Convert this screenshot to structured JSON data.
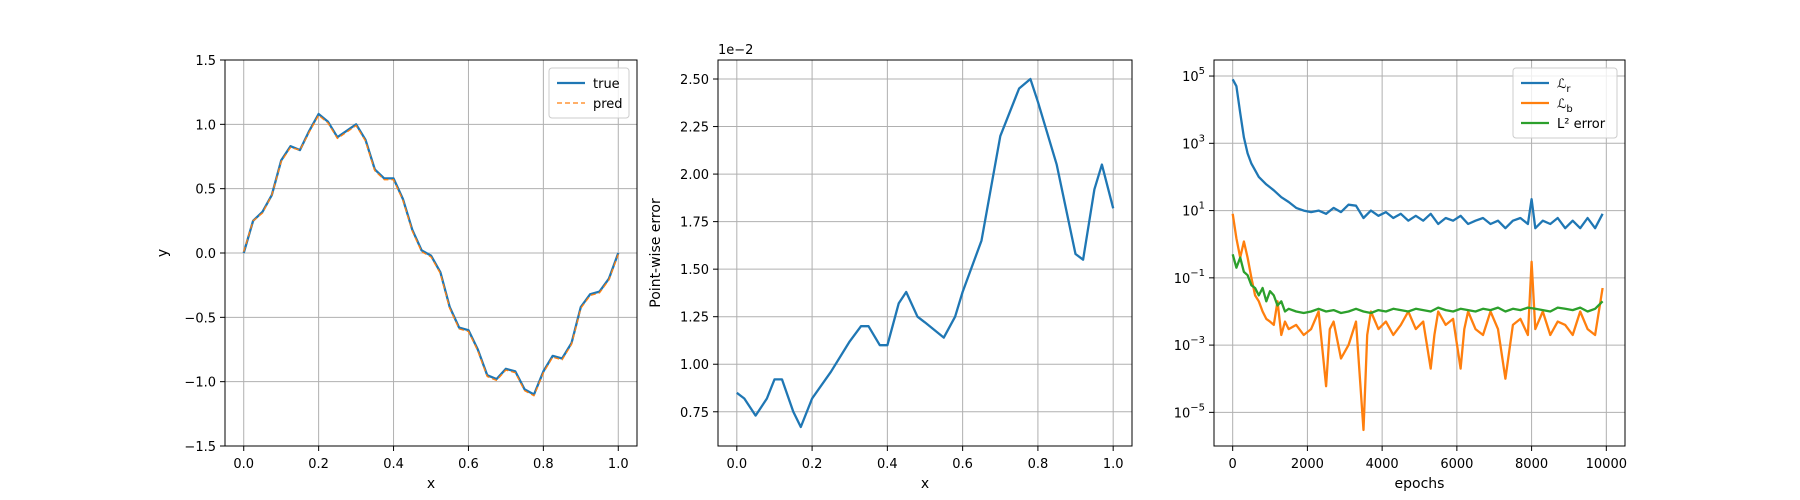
{
  "colors": {
    "blue": "#1f77b4",
    "orange": "#ff7f0e",
    "green": "#2ca02c",
    "grid": "#b0b0b0"
  },
  "chart_data": [
    {
      "type": "line",
      "xlabel": "x",
      "ylabel": "y",
      "xlim": [
        -0.05,
        1.05
      ],
      "ylim": [
        -1.5,
        1.5
      ],
      "xticks": [
        0.0,
        0.2,
        0.4,
        0.6,
        0.8,
        1.0
      ],
      "xtick_labels": [
        "0.0",
        "0.2",
        "0.4",
        "0.6",
        "0.8",
        "1.0"
      ],
      "yticks": [
        -1.5,
        -1.0,
        -0.5,
        0.0,
        0.5,
        1.0,
        1.5
      ],
      "ytick_labels": [
        "−1.5",
        "−1.0",
        "−0.5",
        "0.0",
        "0.5",
        "1.0",
        "1.5"
      ],
      "grid": true,
      "legend": "top-right",
      "series": [
        {
          "name": "true",
          "color": "#1f77b4",
          "style": "solid",
          "x": [
            0.0,
            0.025,
            0.05,
            0.075,
            0.1,
            0.125,
            0.15,
            0.175,
            0.2,
            0.225,
            0.25,
            0.275,
            0.3,
            0.325,
            0.35,
            0.375,
            0.4,
            0.425,
            0.45,
            0.475,
            0.5,
            0.525,
            0.55,
            0.575,
            0.6,
            0.625,
            0.65,
            0.675,
            0.7,
            0.725,
            0.75,
            0.775,
            0.8,
            0.825,
            0.85,
            0.875,
            0.9,
            0.925,
            0.95,
            0.975,
            1.0
          ],
          "y": [
            0.0,
            0.25,
            0.32,
            0.45,
            0.72,
            0.83,
            0.8,
            0.95,
            1.08,
            1.02,
            0.9,
            0.95,
            1.0,
            0.88,
            0.65,
            0.58,
            0.58,
            0.42,
            0.18,
            0.02,
            -0.02,
            -0.15,
            -0.42,
            -0.58,
            -0.6,
            -0.75,
            -0.95,
            -0.98,
            -0.9,
            -0.92,
            -1.06,
            -1.1,
            -0.92,
            -0.8,
            -0.82,
            -0.7,
            -0.42,
            -0.32,
            -0.3,
            -0.2,
            0.0
          ]
        },
        {
          "name": "pred",
          "color": "#ff7f0e",
          "style": "dashed",
          "x": [
            0.0,
            0.025,
            0.05,
            0.075,
            0.1,
            0.125,
            0.15,
            0.175,
            0.2,
            0.225,
            0.25,
            0.275,
            0.3,
            0.325,
            0.35,
            0.375,
            0.4,
            0.425,
            0.45,
            0.475,
            0.5,
            0.525,
            0.55,
            0.575,
            0.6,
            0.625,
            0.65,
            0.675,
            0.7,
            0.725,
            0.75,
            0.775,
            0.8,
            0.825,
            0.85,
            0.875,
            0.9,
            0.925,
            0.95,
            0.975,
            1.0
          ],
          "y": [
            0.01,
            0.25,
            0.31,
            0.45,
            0.71,
            0.82,
            0.8,
            0.94,
            1.07,
            1.01,
            0.89,
            0.94,
            0.99,
            0.87,
            0.64,
            0.57,
            0.57,
            0.41,
            0.17,
            0.01,
            -0.03,
            -0.16,
            -0.43,
            -0.59,
            -0.61,
            -0.76,
            -0.96,
            -0.99,
            -0.91,
            -0.93,
            -1.07,
            -1.11,
            -0.93,
            -0.81,
            -0.83,
            -0.71,
            -0.43,
            -0.33,
            -0.31,
            -0.21,
            -0.01
          ]
        }
      ]
    },
    {
      "type": "line",
      "xlabel": "x",
      "ylabel": "Point-wise error",
      "offset_text": "1e−2",
      "xlim": [
        -0.05,
        1.05
      ],
      "ylim": [
        0.57,
        2.6
      ],
      "xticks": [
        0.0,
        0.2,
        0.4,
        0.6,
        0.8,
        1.0
      ],
      "xtick_labels": [
        "0.0",
        "0.2",
        "0.4",
        "0.6",
        "0.8",
        "1.0"
      ],
      "yticks": [
        0.75,
        1.0,
        1.25,
        1.5,
        1.75,
        2.0,
        2.25,
        2.5
      ],
      "ytick_labels": [
        "0.75",
        "1.00",
        "1.25",
        "1.50",
        "1.75",
        "2.00",
        "2.25",
        "2.50"
      ],
      "grid": true,
      "series": [
        {
          "color": "#1f77b4",
          "x": [
            0.0,
            0.02,
            0.05,
            0.08,
            0.1,
            0.12,
            0.15,
            0.17,
            0.2,
            0.25,
            0.3,
            0.33,
            0.35,
            0.38,
            0.4,
            0.43,
            0.45,
            0.48,
            0.5,
            0.55,
            0.58,
            0.6,
            0.65,
            0.7,
            0.75,
            0.78,
            0.8,
            0.85,
            0.9,
            0.92,
            0.95,
            0.97,
            1.0
          ],
          "y": [
            0.85,
            0.82,
            0.73,
            0.82,
            0.92,
            0.92,
            0.75,
            0.67,
            0.82,
            0.96,
            1.12,
            1.2,
            1.2,
            1.1,
            1.1,
            1.32,
            1.38,
            1.25,
            1.22,
            1.14,
            1.25,
            1.38,
            1.65,
            2.2,
            2.45,
            2.5,
            2.38,
            2.05,
            1.58,
            1.55,
            1.92,
            2.05,
            1.82
          ]
        }
      ]
    },
    {
      "type": "line",
      "xlabel": "epochs",
      "ylabel": "",
      "yscale": "log",
      "xlim": [
        -500,
        10500
      ],
      "ylim": [
        1e-06,
        300000.0
      ],
      "xticks": [
        0,
        2000,
        4000,
        6000,
        8000,
        10000
      ],
      "xtick_labels": [
        "0",
        "2000",
        "4000",
        "6000",
        "8000",
        "10000"
      ],
      "yticks": [
        1e-05,
        0.001,
        0.1,
        10,
        1000,
        100000
      ],
      "ytick_labels": [
        [
          "10",
          "−5"
        ],
        [
          "10",
          "−3"
        ],
        [
          "10",
          "−1"
        ],
        [
          "10",
          "1"
        ],
        [
          "10",
          "3"
        ],
        [
          "10",
          "5"
        ]
      ],
      "grid": true,
      "legend": "top-right",
      "series": [
        {
          "name": "ℒ",
          "sub": "r",
          "color": "#1f77b4",
          "x": [
            0,
            100,
            200,
            300,
            400,
            500,
            700,
            900,
            1100,
            1300,
            1500,
            1700,
            1900,
            2100,
            2300,
            2500,
            2700,
            2900,
            3100,
            3300,
            3500,
            3700,
            3900,
            4100,
            4300,
            4500,
            4700,
            4900,
            5100,
            5300,
            5500,
            5700,
            5900,
            6100,
            6300,
            6500,
            6700,
            6900,
            7100,
            7300,
            7500,
            7700,
            7900,
            8000,
            8100,
            8300,
            8500,
            8700,
            8900,
            9100,
            9300,
            9500,
            9700,
            9900
          ],
          "y": [
            80000,
            50000,
            8000,
            1500,
            500,
            250,
            100,
            60,
            40,
            25,
            18,
            12,
            10,
            9,
            10,
            8,
            12,
            9,
            15,
            14,
            6,
            10,
            7,
            9,
            6,
            8,
            5,
            7,
            5,
            8,
            4,
            6,
            5,
            7,
            4,
            5,
            6,
            4,
            5,
            3,
            5,
            6,
            4,
            22,
            3,
            5,
            4,
            6,
            3,
            5,
            3,
            6,
            3,
            8
          ]
        },
        {
          "name": "ℒ",
          "sub": "b",
          "color": "#ff7f0e",
          "x": [
            0,
            100,
            200,
            300,
            400,
            500,
            600,
            700,
            800,
            900,
            1000,
            1100,
            1200,
            1300,
            1400,
            1500,
            1700,
            1900,
            2100,
            2300,
            2500,
            2600,
            2700,
            2900,
            3100,
            3300,
            3500,
            3600,
            3700,
            3900,
            4100,
            4300,
            4500,
            4700,
            4900,
            5100,
            5300,
            5400,
            5500,
            5700,
            5900,
            6100,
            6200,
            6300,
            6500,
            6700,
            6900,
            7100,
            7300,
            7500,
            7700,
            7900,
            8000,
            8100,
            8300,
            8500,
            8700,
            8900,
            9100,
            9300,
            9500,
            9700,
            9900
          ],
          "y": [
            8,
            1.5,
            0.4,
            1.2,
            0.4,
            0.1,
            0.03,
            0.02,
            0.01,
            0.006,
            0.005,
            0.004,
            0.02,
            0.002,
            0.005,
            0.003,
            0.004,
            0.002,
            0.003,
            0.01,
            6e-05,
            0.003,
            0.005,
            0.0004,
            0.001,
            0.005,
            3e-06,
            0.002,
            0.01,
            0.003,
            0.005,
            0.002,
            0.004,
            0.01,
            0.003,
            0.005,
            0.0002,
            0.002,
            0.01,
            0.004,
            0.006,
            0.0002,
            0.003,
            0.01,
            0.003,
            0.002,
            0.01,
            0.003,
            0.0001,
            0.004,
            0.006,
            0.002,
            0.3,
            0.003,
            0.01,
            0.002,
            0.005,
            0.004,
            0.002,
            0.01,
            0.003,
            0.002,
            0.05
          ]
        },
        {
          "name": "L² error",
          "color": "#2ca02c",
          "x": [
            0,
            100,
            200,
            300,
            400,
            500,
            600,
            700,
            800,
            900,
            1000,
            1100,
            1200,
            1300,
            1400,
            1500,
            1700,
            1900,
            2100,
            2300,
            2500,
            2700,
            2900,
            3100,
            3300,
            3500,
            3700,
            3900,
            4100,
            4300,
            4500,
            4700,
            4900,
            5100,
            5300,
            5500,
            5700,
            5900,
            6100,
            6300,
            6500,
            6700,
            6900,
            7100,
            7300,
            7500,
            7700,
            7900,
            8100,
            8300,
            8500,
            8700,
            8900,
            9100,
            9300,
            9500,
            9700,
            9900
          ],
          "y": [
            0.5,
            0.2,
            0.4,
            0.15,
            0.12,
            0.06,
            0.05,
            0.03,
            0.05,
            0.02,
            0.04,
            0.03,
            0.015,
            0.02,
            0.01,
            0.012,
            0.01,
            0.009,
            0.01,
            0.012,
            0.01,
            0.011,
            0.009,
            0.01,
            0.012,
            0.01,
            0.009,
            0.011,
            0.01,
            0.012,
            0.011,
            0.01,
            0.012,
            0.011,
            0.01,
            0.013,
            0.011,
            0.01,
            0.012,
            0.011,
            0.01,
            0.012,
            0.011,
            0.013,
            0.01,
            0.012,
            0.011,
            0.013,
            0.012,
            0.011,
            0.01,
            0.013,
            0.012,
            0.011,
            0.013,
            0.01,
            0.012,
            0.02
          ]
        }
      ]
    }
  ]
}
